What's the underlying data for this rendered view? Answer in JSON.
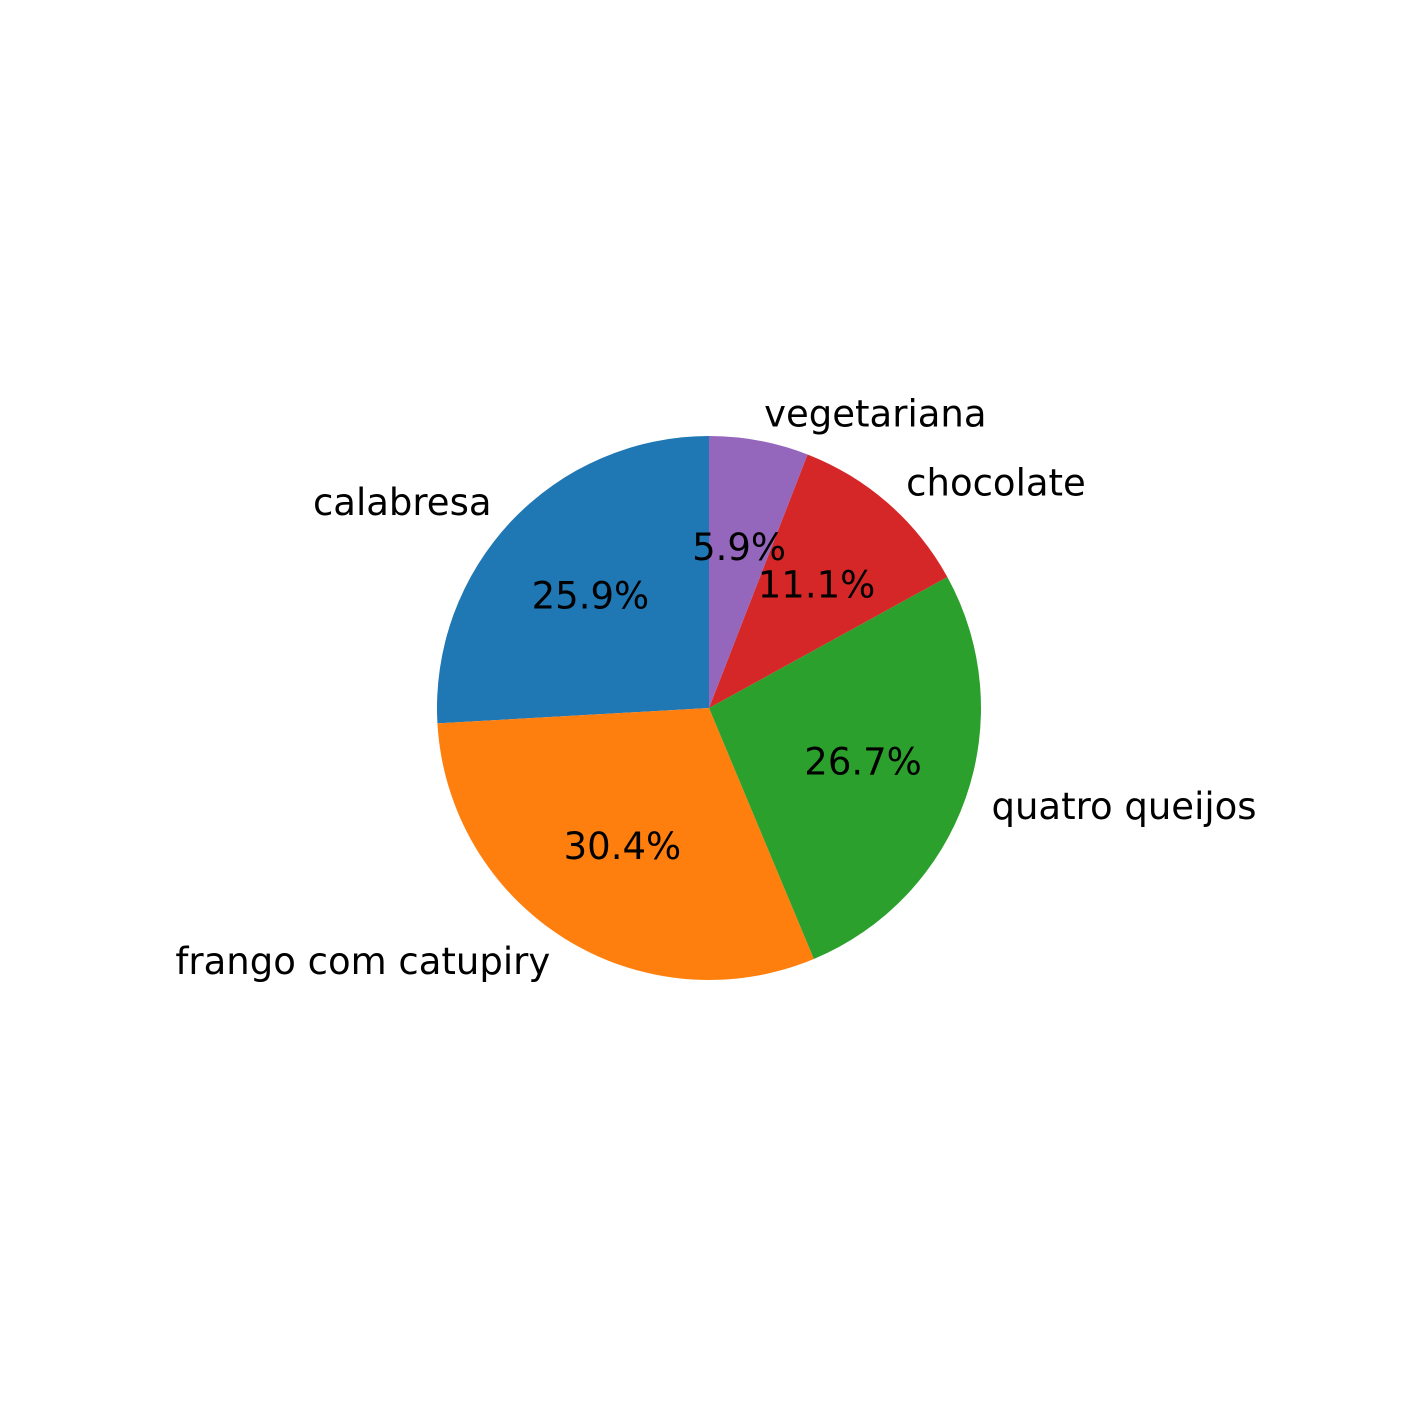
{
  "chart_data": {
    "type": "pie",
    "title": "",
    "start_angle": "top",
    "direction": "counter-clockwise",
    "slices": [
      {
        "label": "calabresa",
        "value": 25.9,
        "pct_label": "25.9%",
        "color": "#1f77b4"
      },
      {
        "label": "frango com catupiry",
        "value": 30.4,
        "pct_label": "30.4%",
        "color": "#ff7f0e"
      },
      {
        "label": "quatro queijos",
        "value": 26.7,
        "pct_label": "26.7%",
        "color": "#2ca02c"
      },
      {
        "label": "chocolate",
        "value": 11.1,
        "pct_label": "11.1%",
        "color": "#d62728"
      },
      {
        "label": "vegetariana",
        "value": 5.9,
        "pct_label": "5.9%",
        "color": "#9467bd"
      }
    ]
  }
}
